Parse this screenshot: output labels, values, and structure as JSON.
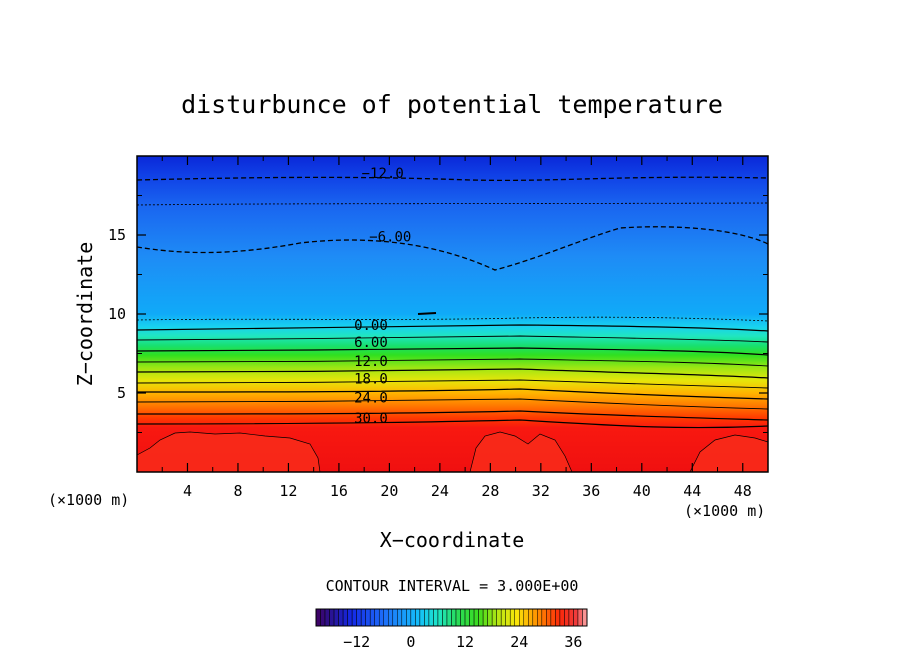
{
  "chart_data": {
    "type": "heatmap",
    "title": "disturbunce of potential temperature",
    "xlabel": "X−coordinate",
    "ylabel": "Z−coordinate",
    "x_unit": "(×1000 m)",
    "y_unit": "(×1000 m)",
    "xlim": [
      0,
      50
    ],
    "ylim": [
      0,
      20
    ],
    "x_ticks": [
      4,
      8,
      12,
      16,
      20,
      24,
      28,
      32,
      36,
      40,
      44,
      48
    ],
    "y_ticks": [
      5,
      10,
      15
    ],
    "contour_interval_label": "CONTOUR INTERVAL = 3.000E+00",
    "contour_labels": [
      {
        "text": "−12.0",
        "x": 17.8,
        "y": 18.6,
        "dashed": true
      },
      {
        "text": "−6.00",
        "x": 18.4,
        "y": 14.6,
        "dashed": true
      },
      {
        "text": "0.00",
        "x": 17.2,
        "y": 9.0,
        "dashed": false
      },
      {
        "text": "6.00",
        "x": 17.2,
        "y": 7.9,
        "dashed": false
      },
      {
        "text": "12.0",
        "x": 17.2,
        "y": 6.7,
        "dashed": false
      },
      {
        "text": "18.0",
        "x": 17.2,
        "y": 5.6,
        "dashed": false
      },
      {
        "text": "24.0",
        "x": 17.2,
        "y": 4.4,
        "dashed": false
      },
      {
        "text": "30.0",
        "x": 17.2,
        "y": 3.1,
        "dashed": false
      }
    ],
    "colorbar": {
      "min": -21,
      "max": 39,
      "ticks": [
        -12,
        0,
        12,
        24,
        36
      ],
      "tick_labels": [
        "−12",
        "0",
        "12",
        "24",
        "36"
      ]
    }
  }
}
